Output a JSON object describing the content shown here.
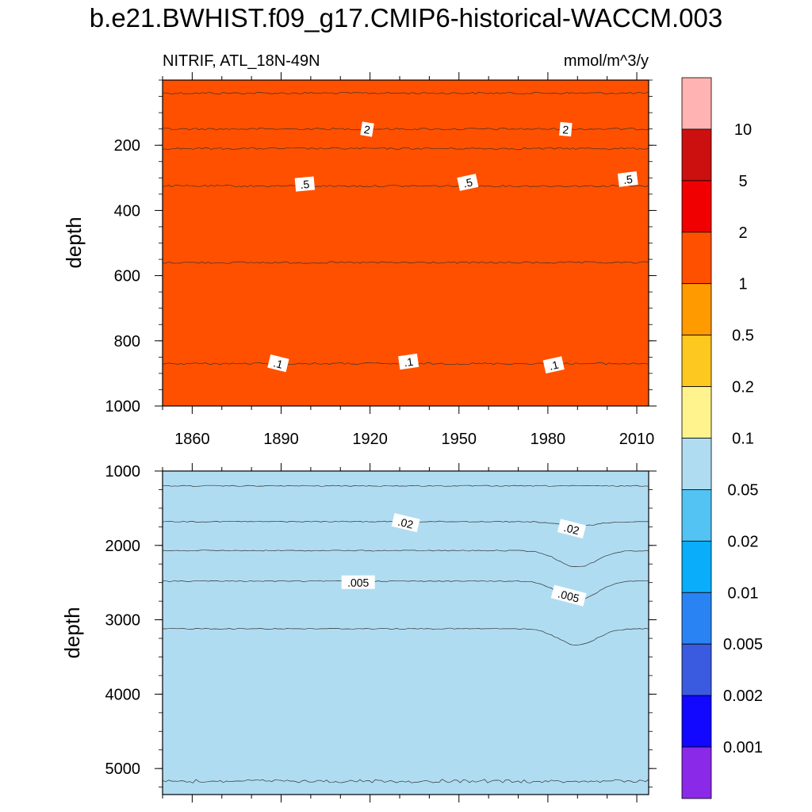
{
  "chart_data": {
    "type": "heatmap",
    "title": "b.e21.BWHIST.f09_g17.CMIP6-historical-WACCM.003",
    "subtitle_left": "NITRIF, ATL_18N-49N",
    "subtitle_right": "mmol/m^3/y",
    "xlabel": "",
    "ylabel": "depth",
    "xlim": [
      1850,
      2014
    ],
    "x_ticks": [
      "1860",
      "1890",
      "1920",
      "1950",
      "1980",
      "2010"
    ],
    "colorbar": {
      "levels": [
        "10",
        "5",
        "2",
        "1",
        "0.5",
        "0.2",
        "0.1",
        "0.05",
        "0.02",
        "0.01",
        "0.005",
        "0.002",
        "0.001"
      ],
      "colors": [
        "#ffb3b3",
        "#cc1010",
        "#f00000",
        "#ff5000",
        "#ff9a00",
        "#fdc81f",
        "#fff38e",
        "#b0dcf2",
        "#52c3f3",
        "#0aadfa",
        "#2a83f2",
        "#3a5be0",
        "#1308ff",
        "#8a2ae8"
      ]
    },
    "panels": [
      {
        "name": "upper",
        "ylim": [
          1000,
          0
        ],
        "y_ticks": [
          "200",
          "400",
          "600",
          "800",
          "1000"
        ],
        "bands": [
          {
            "upper_value": 0,
            "lower_depth": 40,
            "color": "#ff5000"
          },
          {
            "upper_value": 40,
            "lower_depth": 150,
            "color": "#f00000"
          },
          {
            "upper_value": 150,
            "lower_depth": 210,
            "color": "#ff5000"
          },
          {
            "upper_value": 210,
            "lower_depth": 325,
            "color": "#ff9a00"
          },
          {
            "upper_value": 325,
            "lower_depth": 560,
            "color": "#fdc81f"
          },
          {
            "upper_value": 560,
            "lower_depth": 870,
            "color": "#fff38e"
          },
          {
            "upper_value": 870,
            "lower_depth": 1000,
            "color": "#b0dcf2"
          }
        ],
        "contour_labels": [
          {
            "text": "2",
            "year": 1919,
            "depth": 152
          },
          {
            "text": "2",
            "year": 1986,
            "depth": 152
          },
          {
            "text": ".5",
            "year": 1898,
            "depth": 320
          },
          {
            "text": ".5",
            "year": 1953,
            "depth": 315
          },
          {
            "text": ".5",
            "year": 2007,
            "depth": 305
          },
          {
            "text": ".1",
            "year": 1889,
            "depth": 870
          },
          {
            "text": ".1",
            "year": 1933,
            "depth": 865
          },
          {
            "text": ".1",
            "year": 1982,
            "depth": 875
          }
        ]
      },
      {
        "name": "lower",
        "ylim": [
          5350,
          1000
        ],
        "y_ticks": [
          "1000",
          "2000",
          "3000",
          "4000",
          "5000"
        ],
        "bands": [
          {
            "upper_value": 1000,
            "lower_depth": 1200,
            "color": "#b0dcf2"
          },
          {
            "upper_value": 1200,
            "lower_depth": 1680,
            "color": "#52c3f3"
          },
          {
            "upper_value": 1680,
            "lower_depth": 2070,
            "color": "#0aadfa"
          },
          {
            "upper_value": 2070,
            "lower_depth": 2480,
            "color": "#2a83f2"
          },
          {
            "upper_value": 2480,
            "lower_depth": 3120,
            "color": "#3a5be0"
          },
          {
            "upper_value": 3120,
            "lower_depth": 5170,
            "color": "#1308ff"
          },
          {
            "upper_value": 5170,
            "lower_depth": 5350,
            "color": "#3a5be0"
          }
        ],
        "contour_labels": [
          {
            "text": ".02",
            "year": 1932,
            "depth": 1700
          },
          {
            "text": ".02",
            "year": 1988,
            "depth": 1780
          },
          {
            "text": ".005",
            "year": 1916,
            "depth": 2500
          },
          {
            "text": ".005",
            "year": 1987,
            "depth": 2680
          }
        ]
      }
    ]
  }
}
